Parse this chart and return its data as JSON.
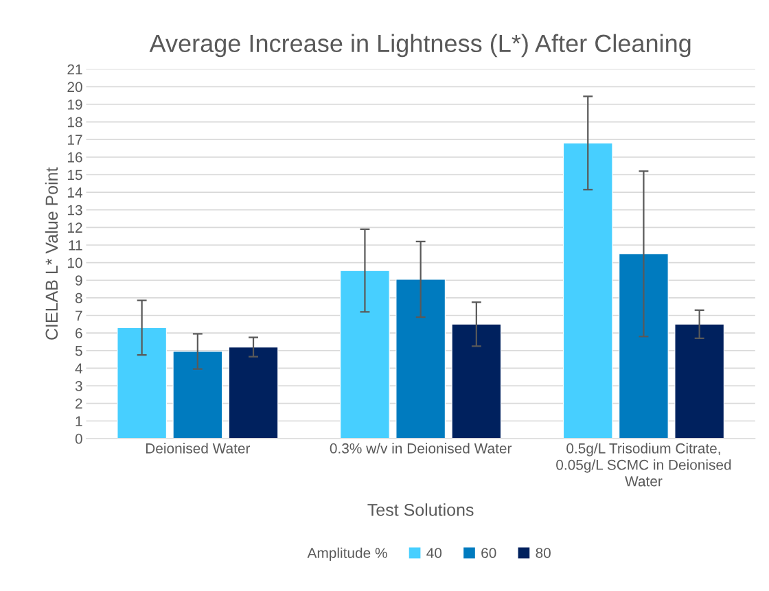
{
  "chart_data": {
    "type": "bar",
    "title": "Average Increase in Lightness (L*) After Cleaning",
    "xlabel": "Test Solutions",
    "ylabel": "CIELAB L* Value Point",
    "legend_title": "Amplitude %",
    "categories": [
      "Deionised Water",
      "0.3% w/v in Deionised Water",
      "0.5g/L Trisodium Citrate, 0.05g/L SCMC in Deionised Water"
    ],
    "series": [
      {
        "name": "40",
        "color": "#47cfff",
        "values": [
          6.3,
          9.55,
          16.8
        ],
        "errors": [
          1.55,
          2.35,
          2.65
        ]
      },
      {
        "name": "60",
        "color": "#007bbf",
        "values": [
          4.95,
          9.05,
          10.5
        ],
        "errors": [
          1.0,
          2.15,
          4.7
        ]
      },
      {
        "name": "80",
        "color": "#00215e",
        "values": [
          5.2,
          6.5,
          6.5
        ],
        "errors": [
          0.55,
          1.25,
          0.8
        ]
      }
    ],
    "ylim": [
      0,
      21
    ],
    "yticks": [
      0,
      1,
      2,
      3,
      4,
      5,
      6,
      7,
      8,
      9,
      10,
      11,
      12,
      13,
      14,
      15,
      16,
      17,
      18,
      19,
      20,
      21
    ],
    "grid": "y",
    "legend": "bottom"
  }
}
